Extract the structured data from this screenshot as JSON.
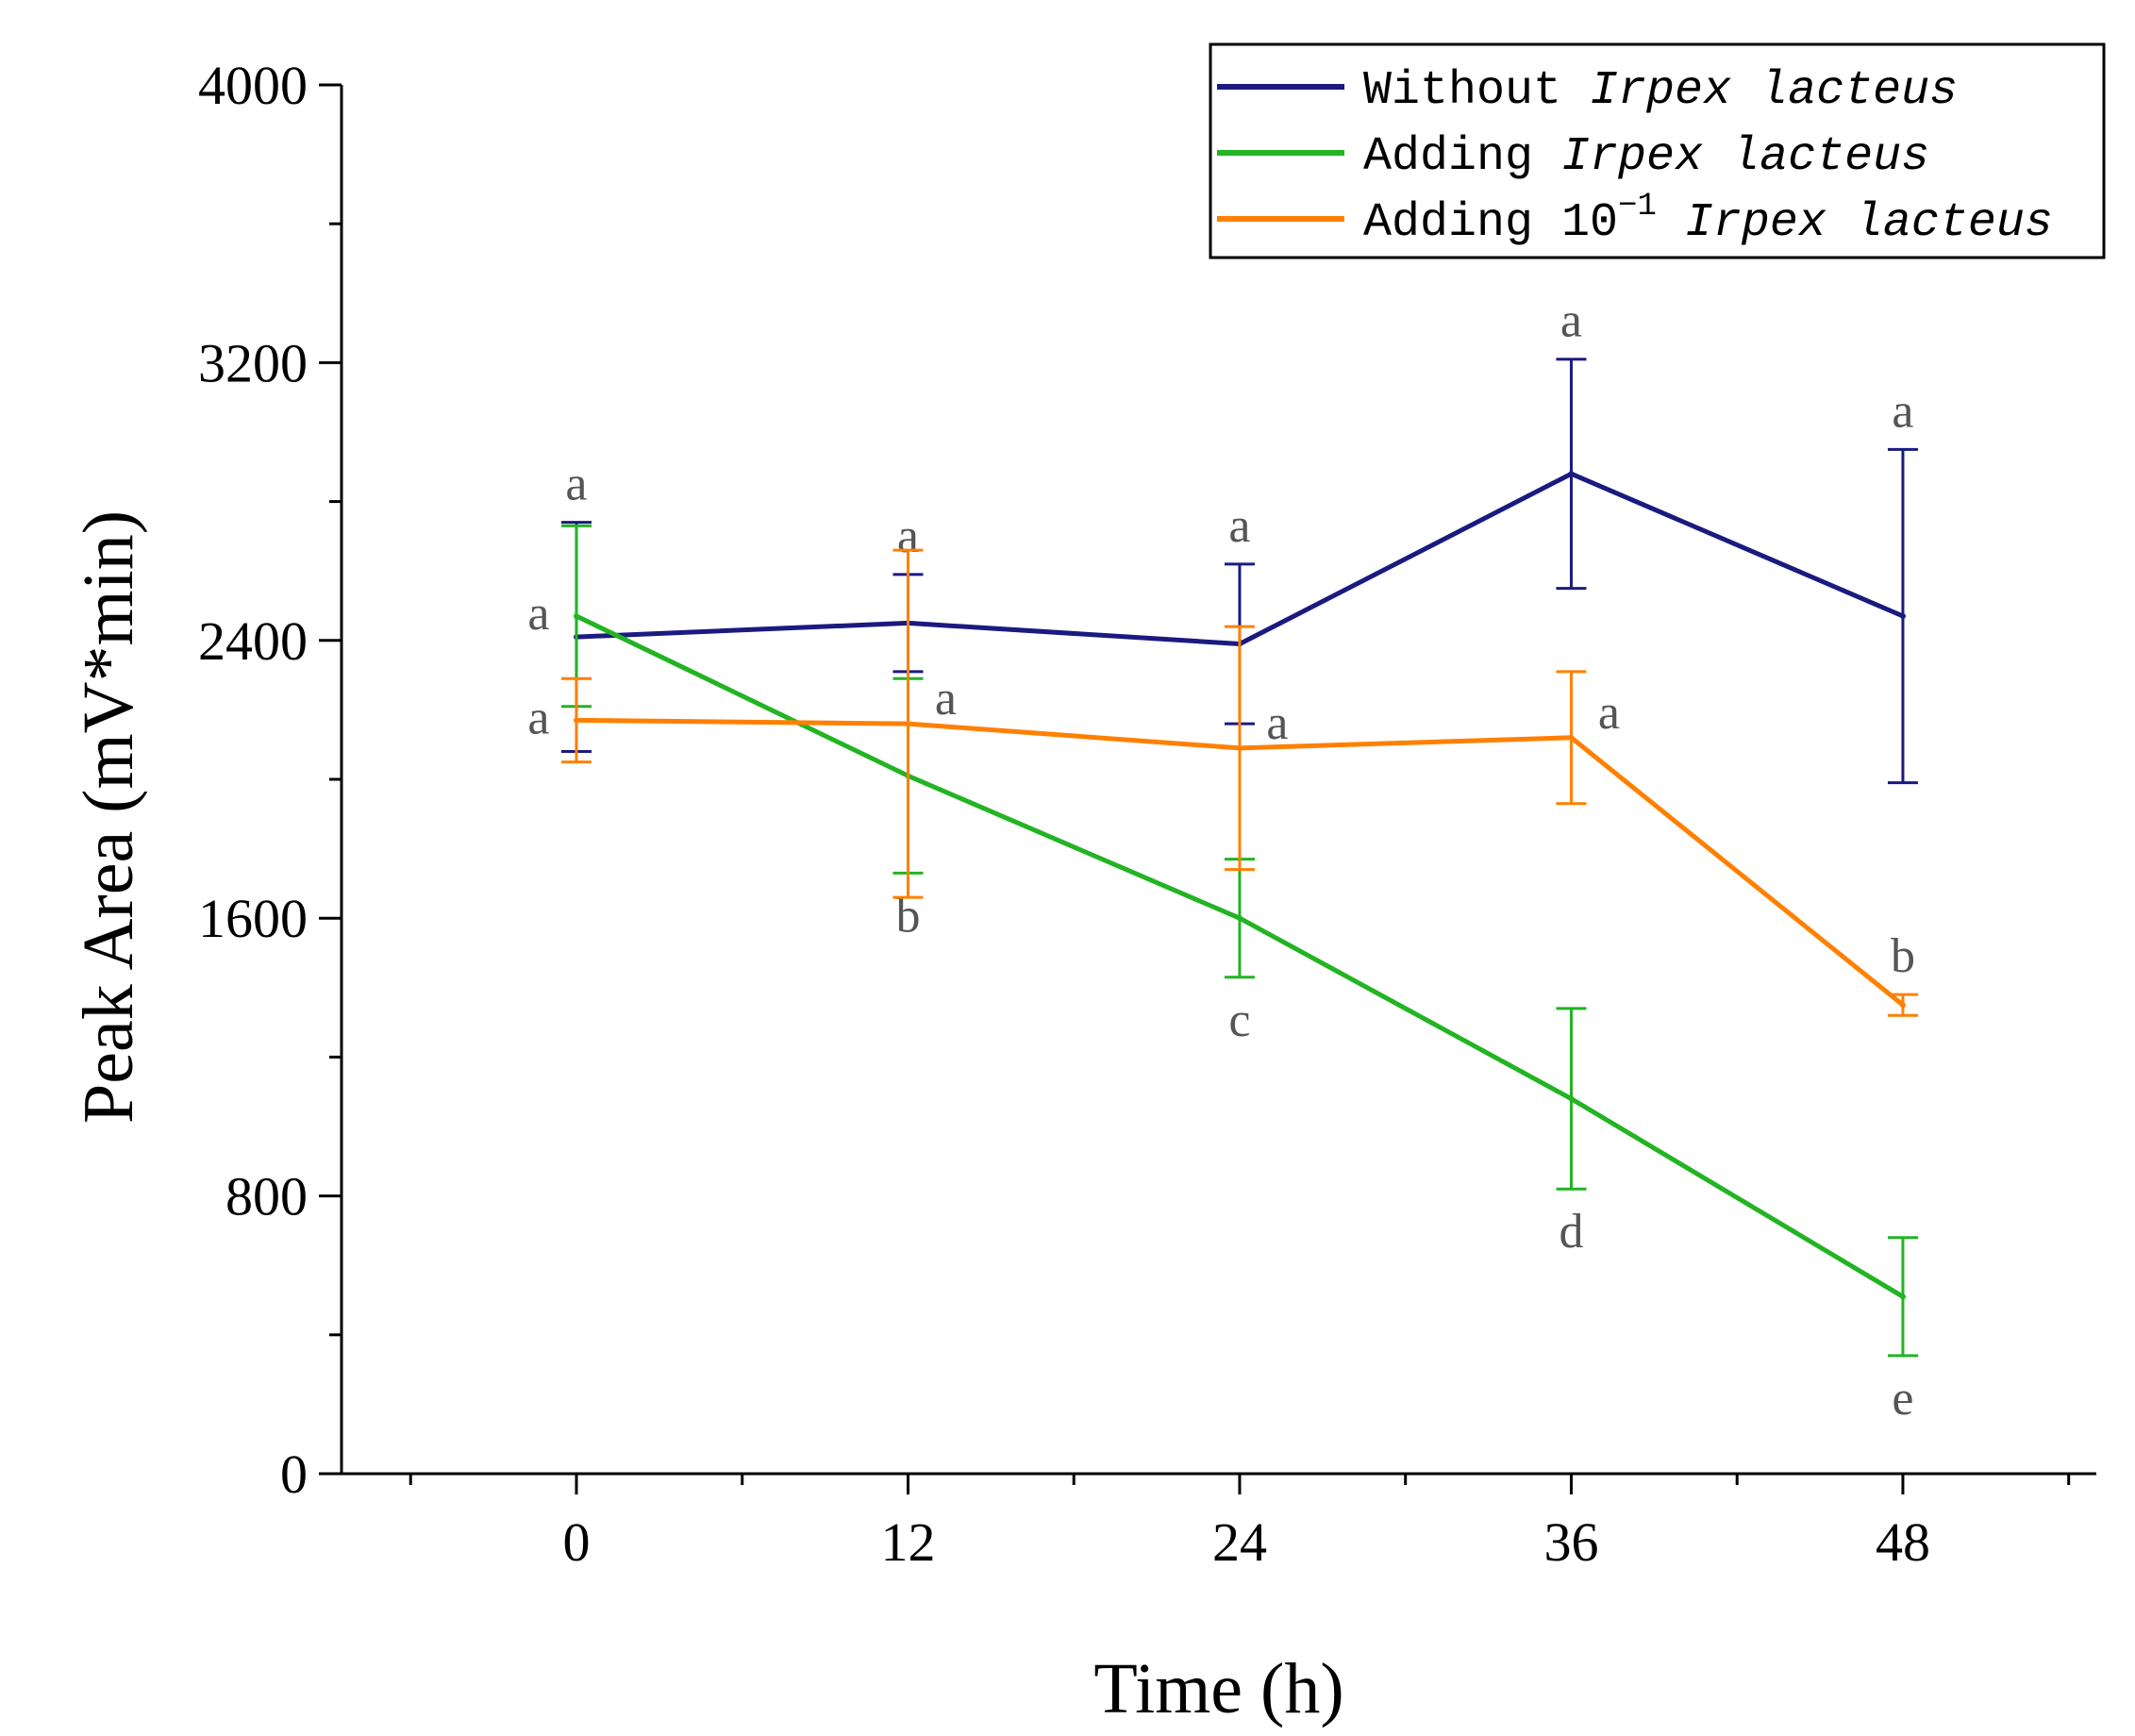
{
  "chart_data": {
    "type": "line",
    "title": "",
    "xlabel": "Time (h)",
    "ylabel": "Peak Area (mV*min)",
    "xlim": [
      -8.5,
      55
    ],
    "ylim": [
      0,
      4000
    ],
    "x_ticks": [
      0,
      12,
      24,
      36,
      48
    ],
    "x_tick_labels": [
      "0",
      "12",
      "24",
      "36",
      "48"
    ],
    "x_minor_ticks": [
      -6,
      6,
      18,
      30,
      42,
      54
    ],
    "y_ticks": [
      0,
      800,
      1600,
      2400,
      3200,
      4000
    ],
    "y_tick_labels": [
      "0",
      "800",
      "1600",
      "2400",
      "3200",
      "4000"
    ],
    "y_minor_ticks": [
      400,
      1200,
      2000,
      2800,
      3600
    ],
    "grid": false,
    "legend_position": "top-right",
    "x": [
      0,
      12,
      24,
      36,
      48
    ],
    "series": [
      {
        "name": "Without Irpex lacteus",
        "legend_prefix": "Without ",
        "legend_superscript": "",
        "legend_species": "Irpex lacteus",
        "color": "#1a1a80",
        "values": [
          2410,
          2450,
          2390,
          2880,
          2470
        ],
        "errors": [
          330,
          140,
          230,
          330,
          480
        ],
        "letters": [
          "a",
          "a",
          "a",
          "a",
          "a"
        ],
        "letter_positions": [
          "above",
          "above",
          "above",
          "above",
          "above"
        ]
      },
      {
        "name": "Adding Irpex lacteus",
        "legend_prefix": "Adding ",
        "legend_superscript": "",
        "legend_species": "Irpex lacteus",
        "color": "#22b422",
        "values": [
          2470,
          2010,
          1600,
          1080,
          510
        ],
        "errors": [
          260,
          280,
          170,
          260,
          170
        ],
        "letters": [
          "a",
          "b",
          "c",
          "d",
          "e"
        ],
        "letter_positions": [
          "left",
          "below",
          "below",
          "below",
          "below"
        ]
      },
      {
        "name": "Adding 10-1 Irpex lacteus",
        "legend_prefix": "Adding 10",
        "legend_superscript": "−1",
        "legend_species": "Irpex lacteus",
        "color": "#ff8000",
        "values": [
          2170,
          2160,
          2090,
          2120,
          1350
        ],
        "errors": [
          120,
          500,
          350,
          190,
          30
        ],
        "letters": [
          "a",
          "a",
          "a",
          "a",
          "b"
        ],
        "letter_positions": [
          "left",
          "right",
          "right",
          "right",
          "above"
        ]
      }
    ]
  }
}
